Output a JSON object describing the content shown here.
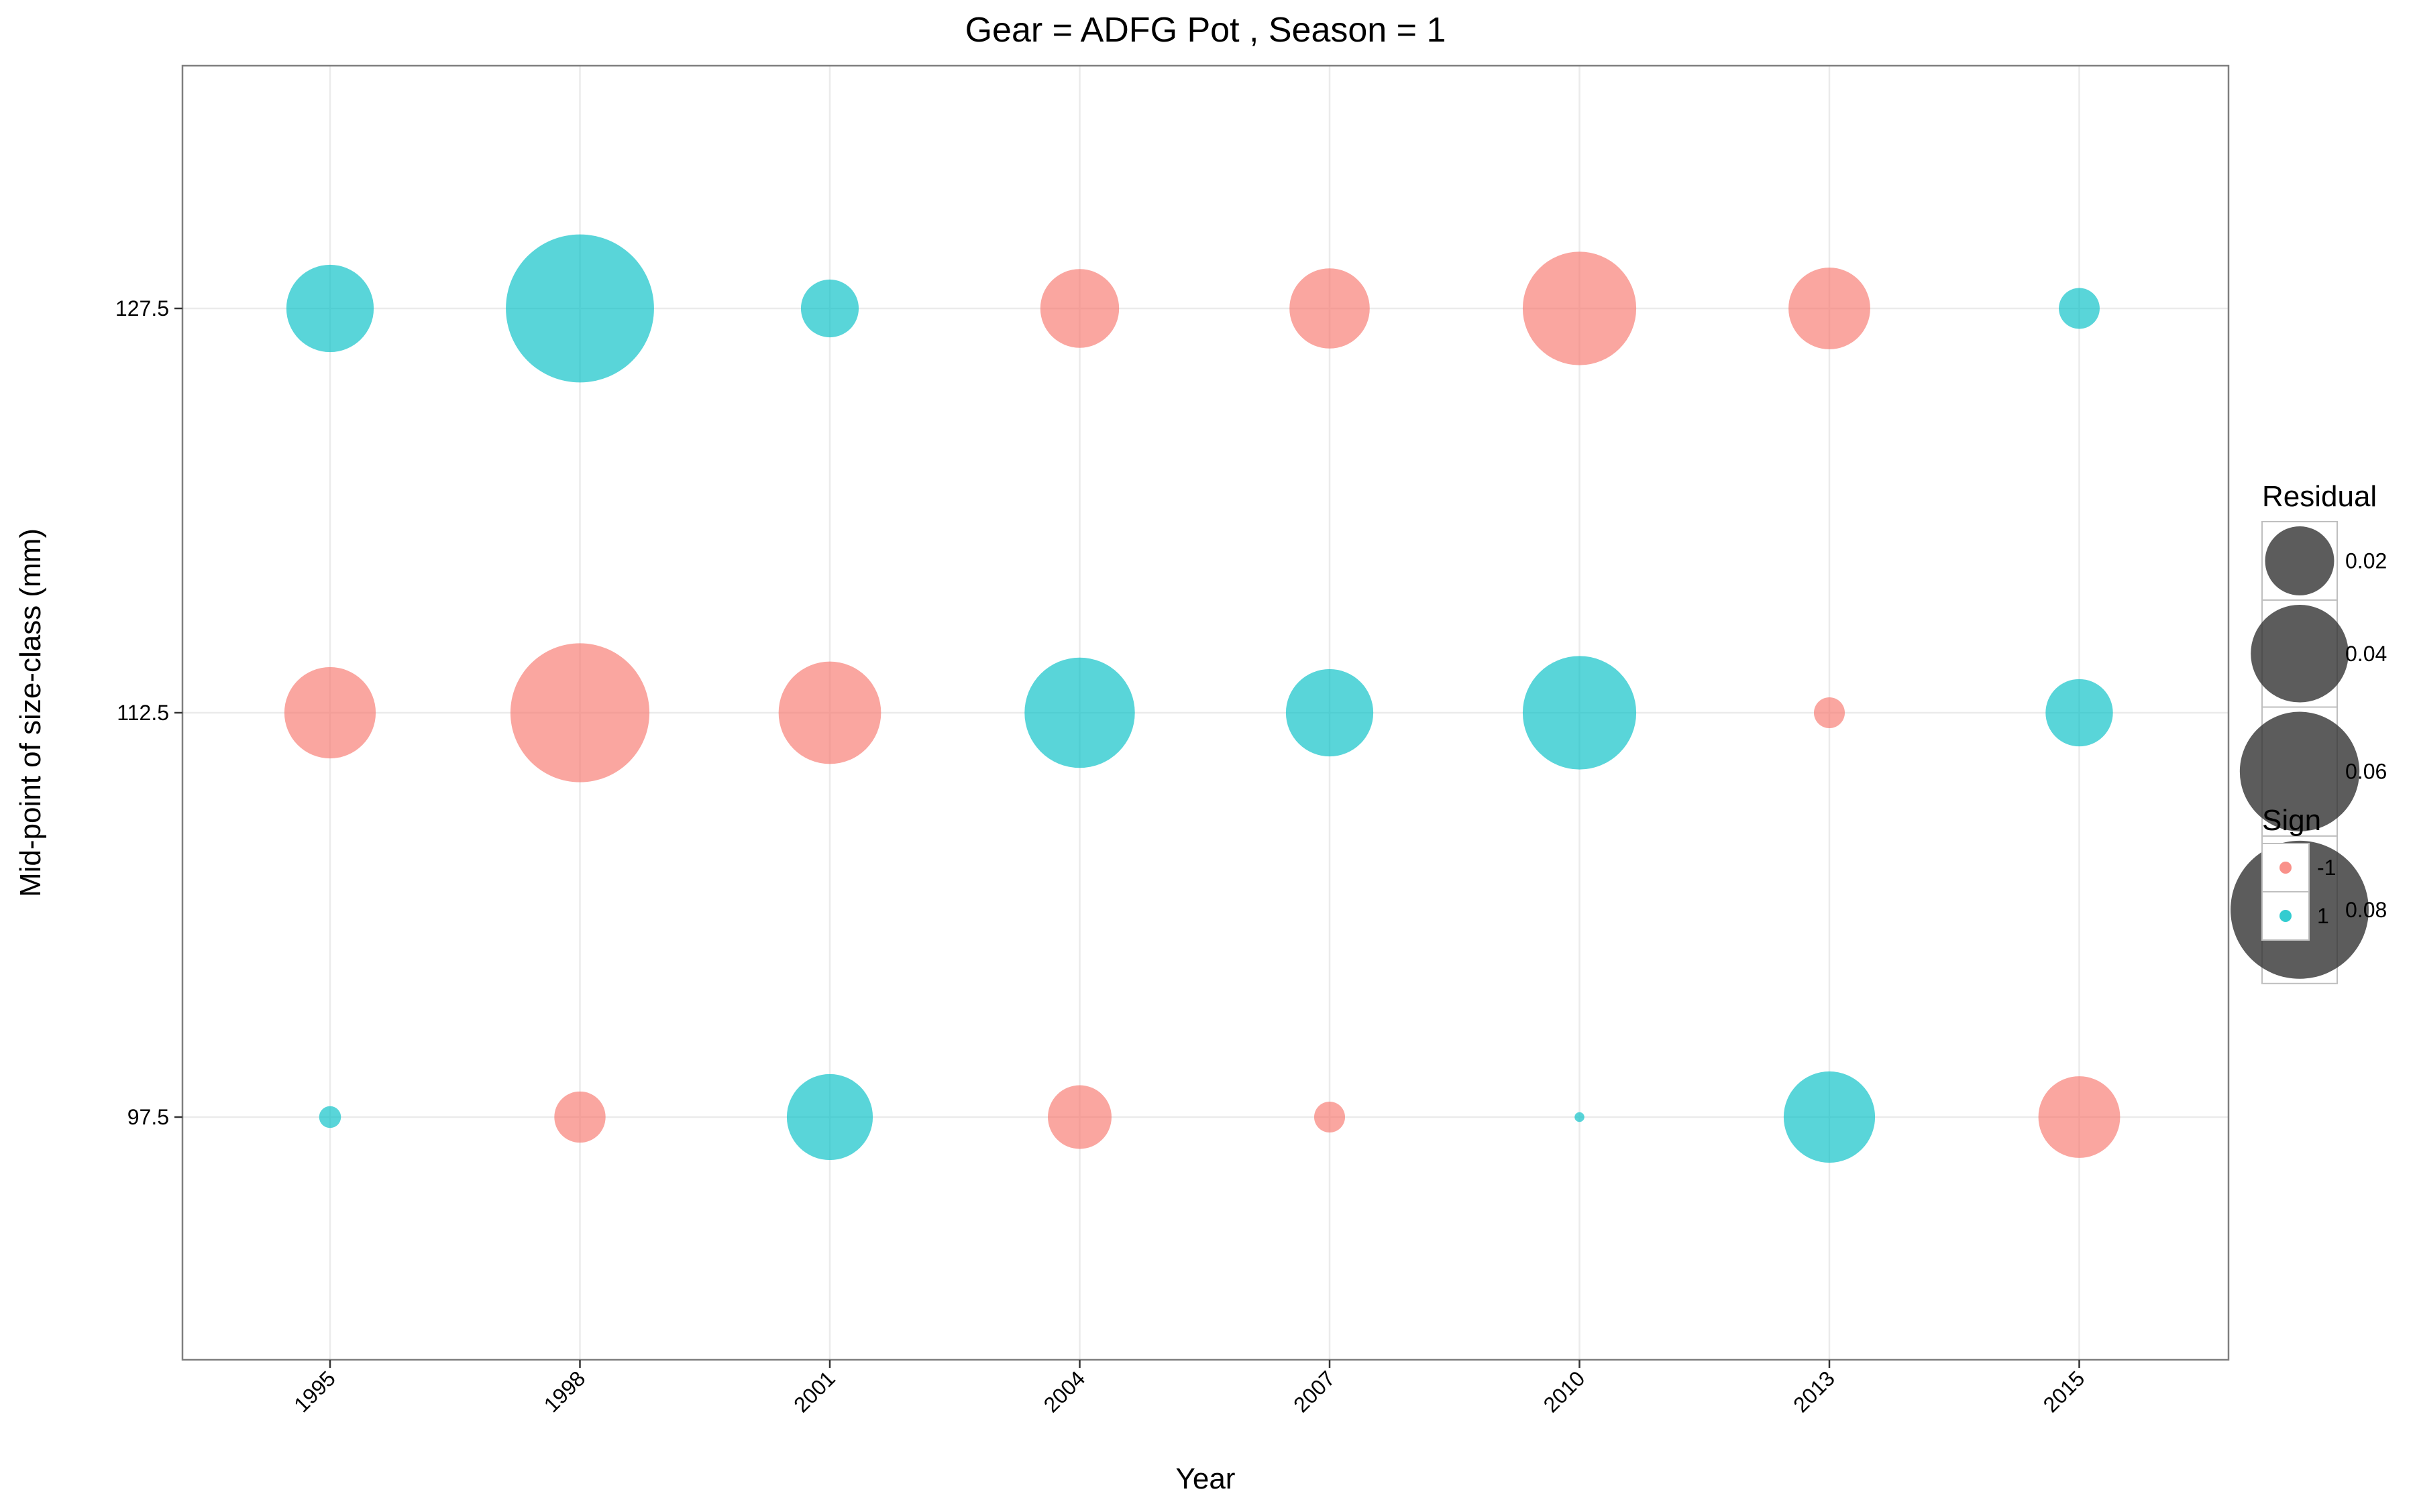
{
  "chart_data": {
    "type": "scatter",
    "title": "Gear = ADFG Pot , Season = 1",
    "xlabel": "Year",
    "ylabel": "Mid-point of size-class (mm)",
    "x_categories": [
      "1995",
      "1998",
      "2001",
      "2004",
      "2007",
      "2010",
      "2013",
      "2015"
    ],
    "y_ticks": [
      97.5,
      112.5,
      127.5
    ],
    "y_tick_labels": [
      "97.5",
      "112.5",
      "127.5"
    ],
    "ylim": [
      88.5,
      135.5
    ],
    "grid": true,
    "legend_position": "right",
    "colors": {
      "-1": "#F8766D",
      "1": "#00BFC4"
    },
    "points": [
      {
        "x": "1995",
        "y": 127.5,
        "residual": 0.032,
        "sign": 1
      },
      {
        "x": "1998",
        "y": 127.5,
        "residual": 0.092,
        "sign": 1
      },
      {
        "x": "2001",
        "y": 127.5,
        "residual": 0.014,
        "sign": 1
      },
      {
        "x": "2004",
        "y": 127.5,
        "residual": 0.026,
        "sign": -1
      },
      {
        "x": "2007",
        "y": 127.5,
        "residual": 0.027,
        "sign": -1
      },
      {
        "x": "2010",
        "y": 127.5,
        "residual": 0.054,
        "sign": -1
      },
      {
        "x": "2013",
        "y": 127.5,
        "residual": 0.028,
        "sign": -1
      },
      {
        "x": "2015",
        "y": 127.5,
        "residual": 0.007,
        "sign": 1
      },
      {
        "x": "1995",
        "y": 112.5,
        "residual": 0.035,
        "sign": -1
      },
      {
        "x": "1998",
        "y": 112.5,
        "residual": 0.081,
        "sign": -1
      },
      {
        "x": "2001",
        "y": 112.5,
        "residual": 0.044,
        "sign": -1
      },
      {
        "x": "2004",
        "y": 112.5,
        "residual": 0.051,
        "sign": 1
      },
      {
        "x": "2007",
        "y": 112.5,
        "residual": 0.032,
        "sign": 1
      },
      {
        "x": "2010",
        "y": 112.5,
        "residual": 0.054,
        "sign": 1
      },
      {
        "x": "2013",
        "y": 112.5,
        "residual": 0.004,
        "sign": -1
      },
      {
        "x": "2015",
        "y": 112.5,
        "residual": 0.019,
        "sign": 1
      },
      {
        "x": "1995",
        "y": 97.5,
        "residual": 0.002,
        "sign": 1
      },
      {
        "x": "1998",
        "y": 97.5,
        "residual": 0.011,
        "sign": -1
      },
      {
        "x": "2001",
        "y": 97.5,
        "residual": 0.031,
        "sign": 1
      },
      {
        "x": "2004",
        "y": 97.5,
        "residual": 0.017,
        "sign": -1
      },
      {
        "x": "2007",
        "y": 97.5,
        "residual": 0.004,
        "sign": -1
      },
      {
        "x": "2010",
        "y": 97.5,
        "residual": 0.0004,
        "sign": 1
      },
      {
        "x": "2013",
        "y": 97.5,
        "residual": 0.035,
        "sign": 1
      },
      {
        "x": "2015",
        "y": 97.5,
        "residual": 0.028,
        "sign": -1
      }
    ],
    "legend": {
      "size_title": "Residual",
      "size_entries": [
        {
          "label": "0.02",
          "value": 0.02
        },
        {
          "label": "0.04",
          "value": 0.04
        },
        {
          "label": "0.06",
          "value": 0.06
        },
        {
          "label": "0.08",
          "value": 0.08
        }
      ],
      "color_title": "Sign",
      "color_entries": [
        {
          "label": "-1",
          "key": "-1"
        },
        {
          "label": "1",
          "key": "1"
        }
      ]
    }
  }
}
